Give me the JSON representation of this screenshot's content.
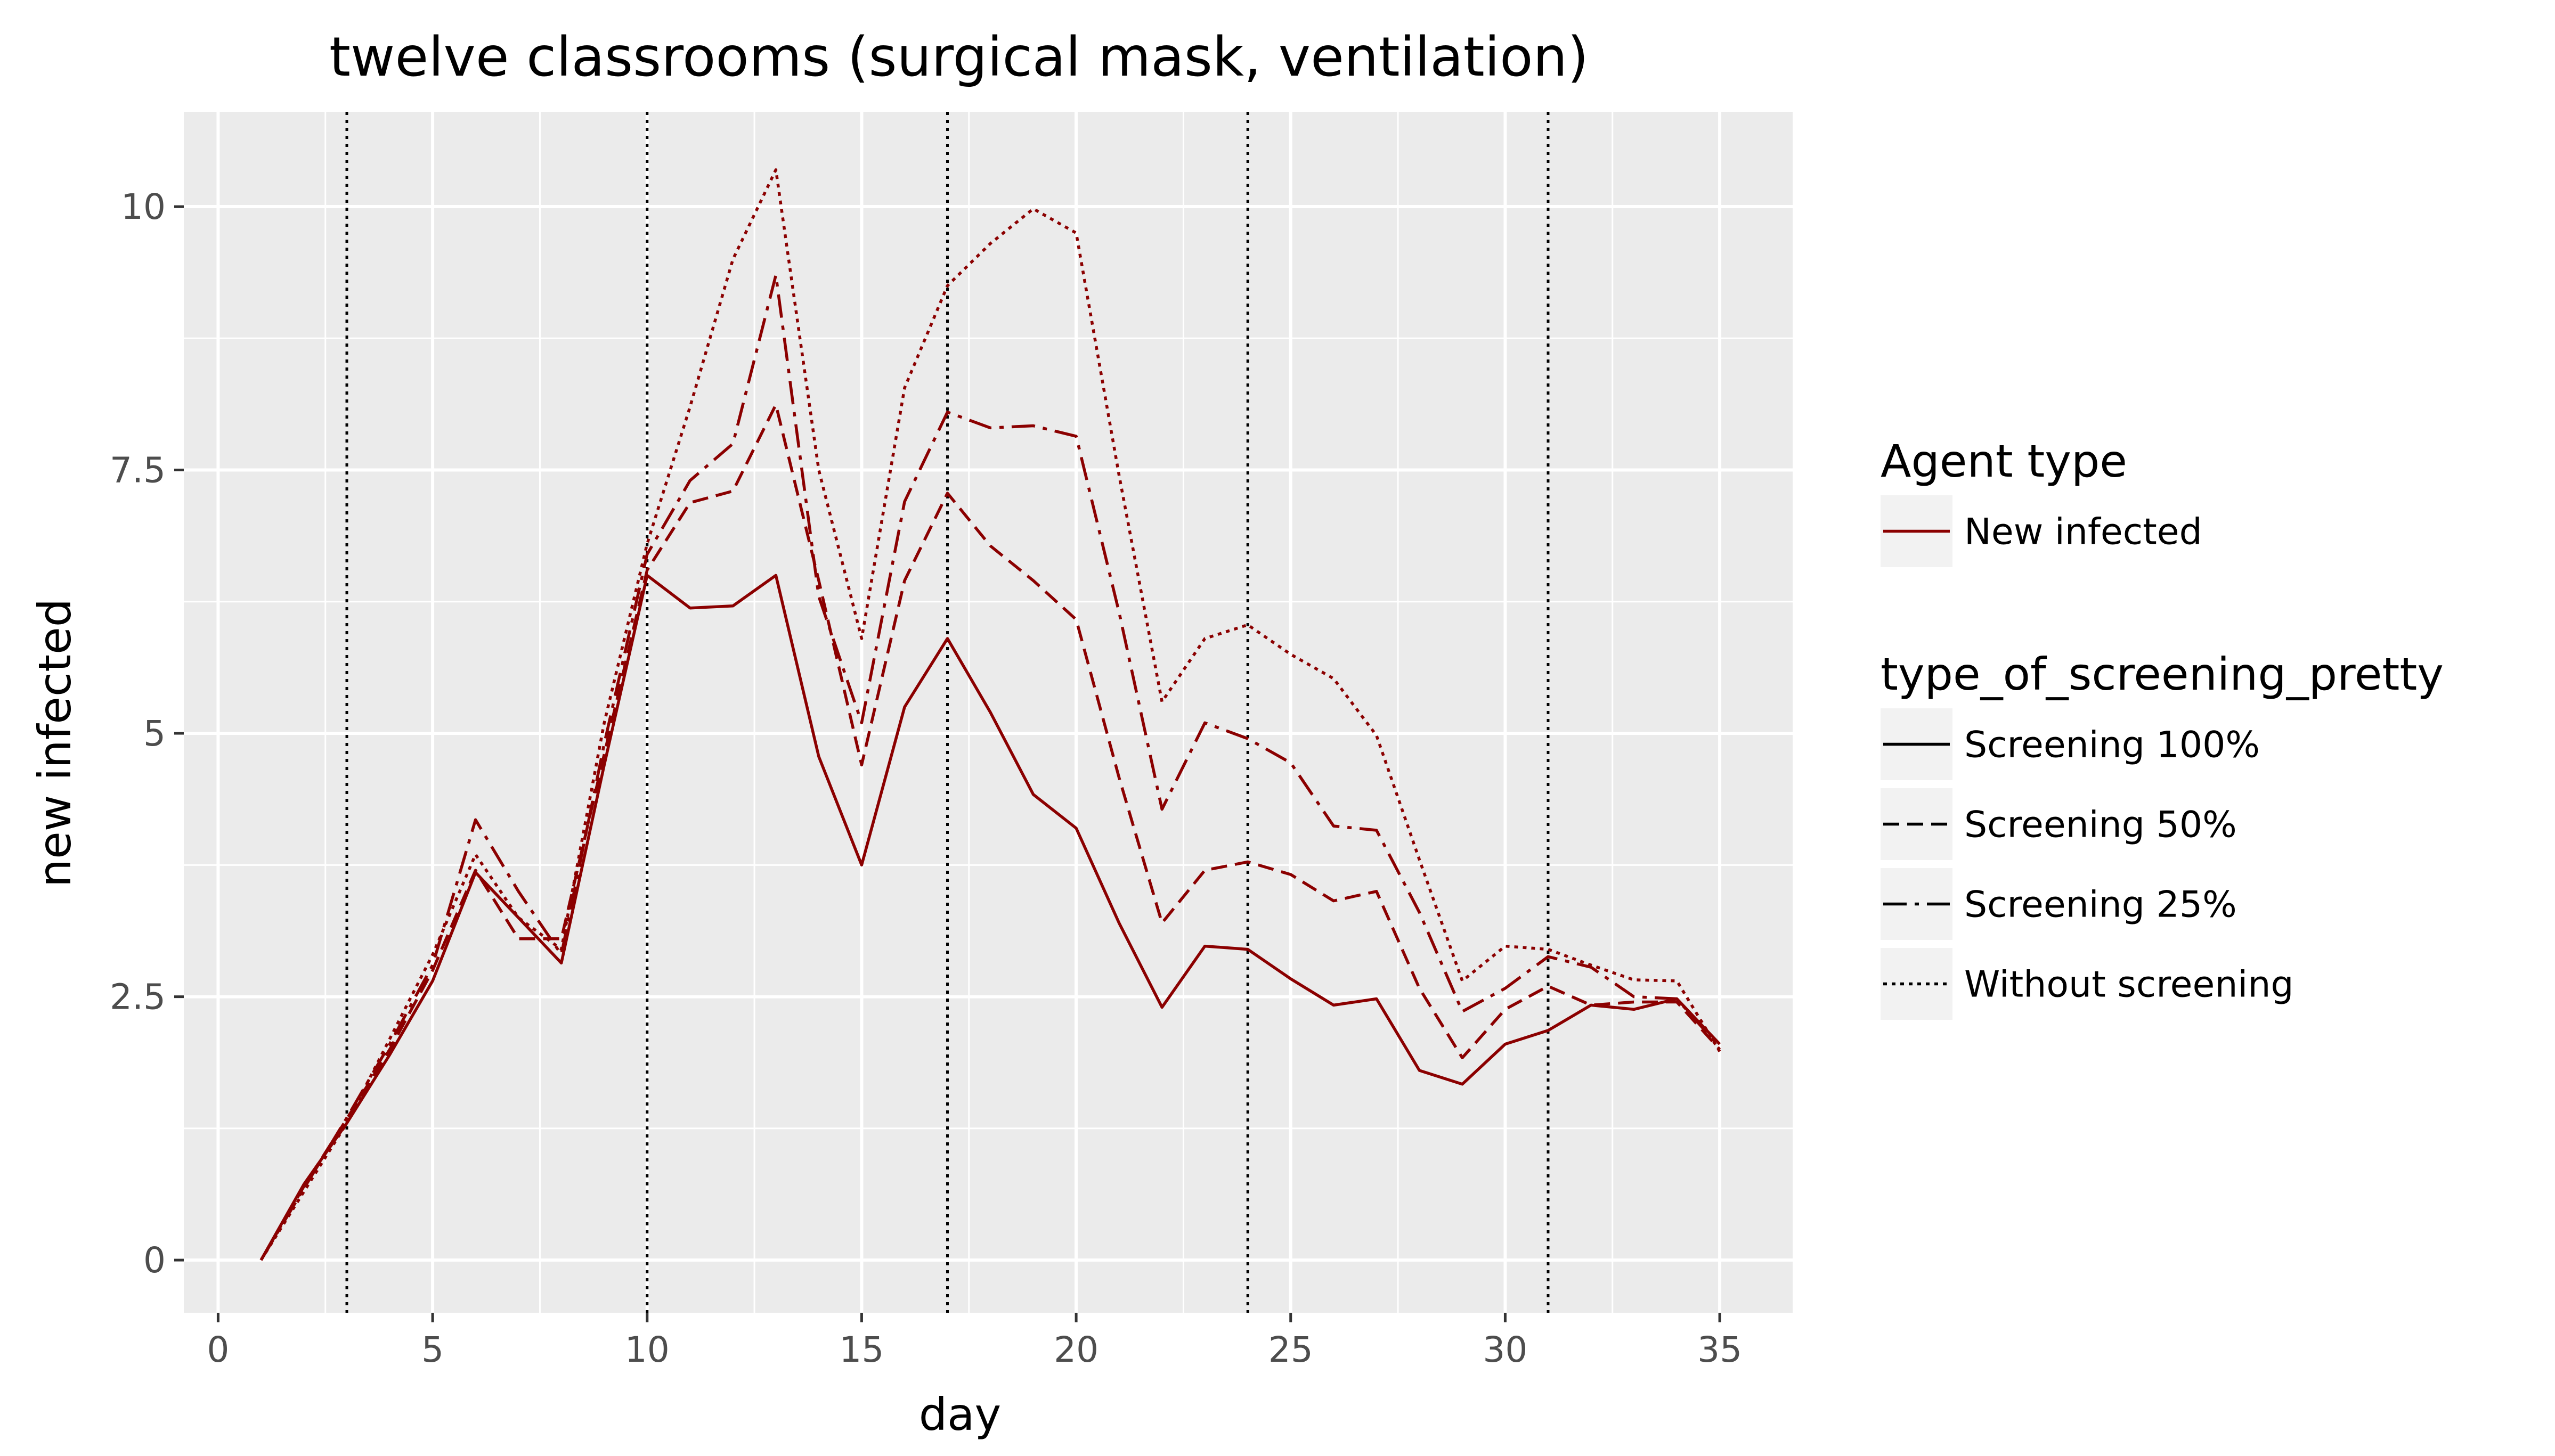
{
  "chart_data": {
    "type": "line",
    "title": "twelve classrooms (surgical mask, ventilation)",
    "xlabel": "day",
    "ylabel": "new infected",
    "xlim": [
      -0.8,
      36.7
    ],
    "ylim": [
      -0.5,
      10.9
    ],
    "x_ticks": [
      0,
      5,
      10,
      15,
      20,
      25,
      30,
      35
    ],
    "x_tick_labels": [
      "0",
      "5",
      "10",
      "15",
      "20",
      "25",
      "30",
      "35"
    ],
    "y_ticks": [
      0,
      2.5,
      5,
      7.5,
      10
    ],
    "y_tick_labels": [
      "0",
      "2.5",
      "5",
      "7.5",
      "10"
    ],
    "vlines": [
      3,
      10,
      17,
      24,
      31
    ],
    "grid": true,
    "line_color": "#8b0000",
    "panel_color": "#ebebeb",
    "legend_position": "right",
    "legends": [
      {
        "title": "Agent type",
        "entries": [
          {
            "label": "New infected",
            "style": "solid",
            "colored": true
          }
        ]
      },
      {
        "title": "type_of_screening_pretty",
        "entries": [
          {
            "label": "Screening 100%",
            "style": "solid",
            "colored": false
          },
          {
            "label": "Screening 50%",
            "style": "dashed",
            "colored": false
          },
          {
            "label": "Screening 25%",
            "style": "dashdot",
            "colored": false
          },
          {
            "label": "Without screening",
            "style": "dotted",
            "colored": false
          }
        ]
      }
    ],
    "x": [
      1,
      2,
      3,
      4,
      5,
      6,
      7,
      8,
      9,
      10,
      11,
      12,
      13,
      14,
      15,
      16,
      17,
      18,
      19,
      20,
      21,
      22,
      23,
      24,
      25,
      26,
      27,
      28,
      29,
      30,
      31,
      32,
      33,
      34,
      35
    ],
    "series": [
      {
        "name": "Screening 100%",
        "style": "solid",
        "values": [
          0,
          0.72,
          1.3,
          1.95,
          2.65,
          3.68,
          3.25,
          2.82,
          4.7,
          6.5,
          6.19,
          6.21,
          6.5,
          4.78,
          3.75,
          5.25,
          5.9,
          5.2,
          4.42,
          4.1,
          3.2,
          2.4,
          2.98,
          2.95,
          2.67,
          2.42,
          2.48,
          1.8,
          1.67,
          2.05,
          2.18,
          2.42,
          2.38,
          2.48,
          2.05
        ]
      },
      {
        "name": "Screening 50%",
        "style": "dashed",
        "values": [
          0,
          0.7,
          1.34,
          2.0,
          2.75,
          3.7,
          3.05,
          3.05,
          4.8,
          6.55,
          7.19,
          7.3,
          8.12,
          6.45,
          4.7,
          6.45,
          7.28,
          6.78,
          6.45,
          6.08,
          4.58,
          3.2,
          3.7,
          3.78,
          3.66,
          3.41,
          3.5,
          2.58,
          1.92,
          2.38,
          2.6,
          2.42,
          2.45,
          2.45,
          2.0
        ]
      },
      {
        "name": "Screening 25%",
        "style": "dashdot",
        "values": [
          0,
          0.68,
          1.35,
          2.05,
          2.8,
          4.18,
          3.5,
          2.9,
          4.9,
          6.7,
          7.4,
          7.75,
          9.35,
          6.3,
          5.1,
          7.2,
          8.05,
          7.9,
          7.92,
          7.82,
          6.15,
          4.28,
          5.1,
          4.95,
          4.72,
          4.12,
          4.08,
          3.3,
          2.36,
          2.58,
          2.88,
          2.78,
          2.5,
          2.48,
          2.02
        ]
      },
      {
        "name": "Without screening",
        "style": "dotted",
        "values": [
          0,
          0.65,
          1.3,
          2.1,
          2.9,
          3.85,
          3.25,
          2.95,
          5.1,
          6.8,
          8.1,
          9.5,
          10.35,
          7.5,
          5.9,
          8.28,
          9.25,
          9.65,
          9.98,
          9.75,
          7.45,
          5.3,
          5.9,
          6.03,
          5.75,
          5.52,
          4.98,
          3.8,
          2.65,
          2.98,
          2.95,
          2.8,
          2.66,
          2.65,
          1.98
        ]
      }
    ]
  }
}
